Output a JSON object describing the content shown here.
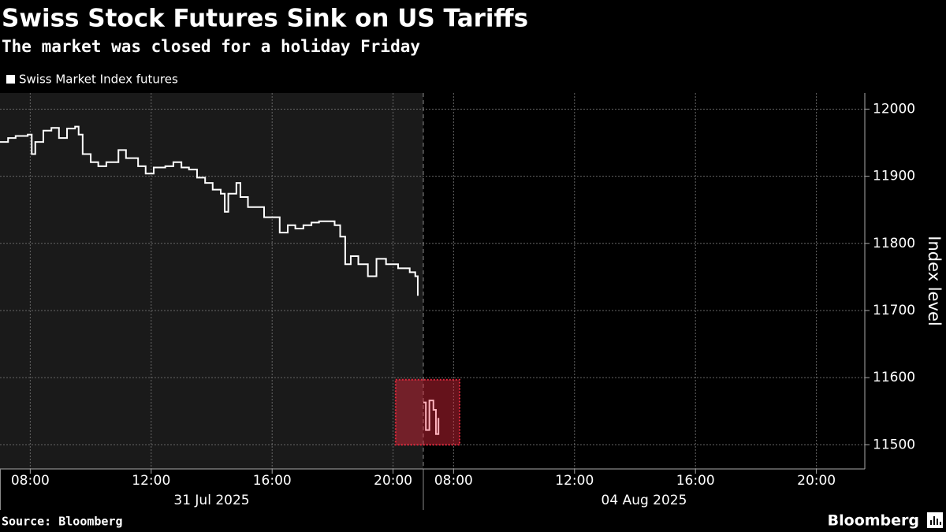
{
  "chart_data": {
    "type": "line",
    "title": "Swiss Stock Futures Sink on US Tariffs",
    "subtitle": "The market was closed for a holiday Friday",
    "y_label": "Index level",
    "source": "Source: Bloomberg",
    "brand": "Bloomberg",
    "ylim": [
      11464,
      12024
    ],
    "yticks": [
      11500,
      11600,
      11700,
      11800,
      11900,
      12000
    ],
    "grid": true,
    "legend": "top-left",
    "x_segments": [
      {
        "date": "2025-07-31",
        "label": "31 Jul 2025",
        "start": 7,
        "end": 21
      },
      {
        "date": "2025-08-04",
        "label": "04 Aug 2025",
        "start": 7,
        "end": 21.6
      }
    ],
    "xticks": [
      {
        "value": "2025-07-31 08:00",
        "label": "08:00"
      },
      {
        "value": "2025-07-31 12:00",
        "label": "12:00"
      },
      {
        "value": "2025-07-31 16:00",
        "label": "16:00"
      },
      {
        "value": "2025-07-31 20:00",
        "label": "20:00"
      },
      {
        "value": "2025-08-04 08:00",
        "label": "08:00"
      },
      {
        "value": "2025-08-04 12:00",
        "label": "12:00"
      },
      {
        "value": "2025-08-04 16:00",
        "label": "16:00"
      },
      {
        "value": "2025-08-04 20:00",
        "label": "20:00"
      }
    ],
    "highlight": {
      "x": [
        "2025-07-31 20:05",
        "2025-08-04 08:12"
      ],
      "y": [
        11500,
        11597
      ],
      "color": "#e0283c",
      "line_color": "#ffb3bd"
    },
    "x": [
      "2025-07-31 07:00",
      "2025-07-31 07:16",
      "2025-07-31 07:31",
      "2025-07-31 07:55",
      "2025-07-31 08:03",
      "2025-07-31 08:10",
      "2025-07-31 08:26",
      "2025-07-31 08:42",
      "2025-07-31 08:57",
      "2025-07-31 09:13",
      "2025-07-31 09:29",
      "2025-07-31 09:36",
      "2025-07-31 09:44",
      "2025-07-31 10:00",
      "2025-07-31 10:15",
      "2025-07-31 10:31",
      "2025-07-31 10:55",
      "2025-07-31 11:10",
      "2025-07-31 11:34",
      "2025-07-31 11:49",
      "2025-07-31 12:05",
      "2025-07-31 12:28",
      "2025-07-31 12:44",
      "2025-07-31 13:00",
      "2025-07-31 13:15",
      "2025-07-31 13:31",
      "2025-07-31 13:47",
      "2025-07-31 14:02",
      "2025-07-31 14:18",
      "2025-07-31 14:26",
      "2025-07-31 14:33",
      "2025-07-31 14:49",
      "2025-07-31 14:57",
      "2025-07-31 15:12",
      "2025-07-31 15:28",
      "2025-07-31 15:44",
      "2025-07-31 15:59",
      "2025-07-31 16:15",
      "2025-07-31 16:31",
      "2025-07-31 16:46",
      "2025-07-31 17:02",
      "2025-07-31 17:18",
      "2025-07-31 17:33",
      "2025-07-31 18:04",
      "2025-07-31 18:15",
      "2025-07-31 18:25",
      "2025-07-31 18:36",
      "2025-07-31 18:51",
      "2025-07-31 19:10",
      "2025-07-31 19:27",
      "2025-07-31 19:46",
      "2025-07-31 20:10",
      "2025-07-31 20:33",
      "2025-07-31 20:44",
      "2025-07-31 20:49",
      "2025-07-31 21:00",
      "2025-08-04 07:00",
      "2025-08-04 07:05",
      "2025-08-04 07:12",
      "2025-08-04 07:20",
      "2025-08-04 07:25",
      "2025-08-04 07:30"
    ],
    "series": [
      {
        "name": "Swiss Market Index futures",
        "color": "#ffffff",
        "values": [
          11951,
          11957,
          11960,
          11962,
          11933,
          11951,
          11968,
          11972,
          11957,
          11971,
          11974,
          11962,
          11933,
          11921,
          11915,
          11921,
          11939,
          11927,
          11915,
          11904,
          11913,
          11915,
          11921,
          11913,
          11910,
          11898,
          11890,
          11880,
          11874,
          11847,
          11874,
          11890,
          11869,
          11854,
          11854,
          11839,
          11839,
          11816,
          11827,
          11822,
          11827,
          11831,
          11833,
          11827,
          11810,
          11769,
          11781,
          11769,
          11751,
          11777,
          11769,
          11763,
          11757,
          11751,
          11722,
          null,
          11563,
          11522,
          11566,
          11552,
          11516,
          11540
        ]
      }
    ]
  }
}
